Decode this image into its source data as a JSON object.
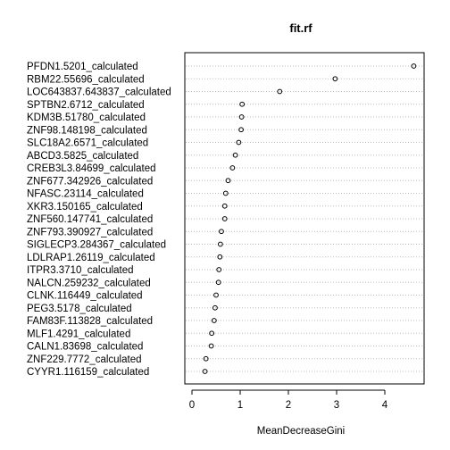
{
  "chart_data": {
    "type": "scatter",
    "title": "fit.rf",
    "xlabel": "MeanDecreaseGini",
    "ylabel": "",
    "xlim": [
      0,
      4.6
    ],
    "xticks": [
      0,
      1,
      2,
      3,
      4
    ],
    "grid": "horizontal dotted",
    "categories": [
      "PFDN1.5201_calculated",
      "RBM22.55696_calculated",
      "LOC643837.643837_calculated",
      "SPTBN2.6712_calculated",
      "KDM3B.51780_calculated",
      "ZNF98.148198_calculated",
      "SLC18A2.6571_calculated",
      "ABCD3.5825_calculated",
      "CREB3L3.84699_calculated",
      "ZNF677.342926_calculated",
      "NFASC.23114_calculated",
      "XKR3.150165_calculated",
      "ZNF560.147741_calculated",
      "ZNF793.390927_calculated",
      "SIGLECP3.284367_calculated",
      "LDLRAP1.26119_calculated",
      "ITPR3.3710_calculated",
      "NALCN.259232_calculated",
      "CLNK.116449_calculated",
      "PEG3.5178_calculated",
      "FAM83F.113828_calculated",
      "MLF1.4291_calculated",
      "CALN1.83698_calculated",
      "ZNF229.7772_calculated",
      "CYYR1.116159_calculated"
    ],
    "values": [
      4.6,
      2.97,
      1.82,
      1.04,
      1.03,
      1.02,
      0.97,
      0.9,
      0.84,
      0.75,
      0.7,
      0.68,
      0.68,
      0.61,
      0.59,
      0.58,
      0.56,
      0.55,
      0.5,
      0.48,
      0.46,
      0.41,
      0.4,
      0.29,
      0.27
    ]
  }
}
